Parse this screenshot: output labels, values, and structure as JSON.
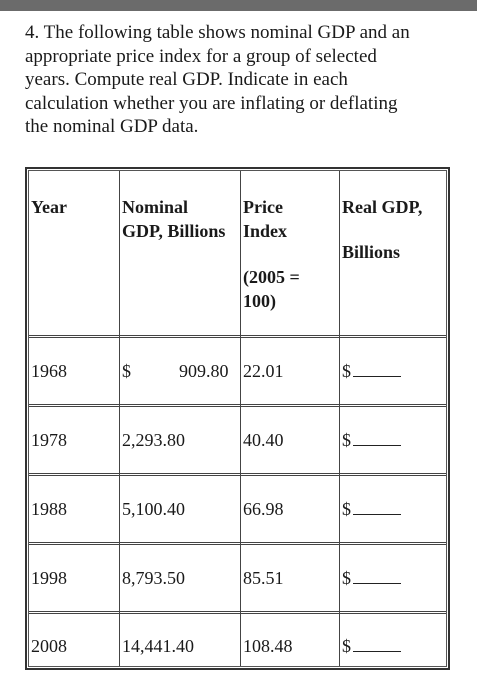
{
  "question": {
    "lines": [
      "4. The following table shows nominal GDP and an",
      "appropriate price index for a group of selected",
      "years. Compute real GDP. Indicate in each",
      "calculation whether you are inflating or deflating",
      "the nominal GDP data."
    ]
  },
  "table": {
    "headers": {
      "year": "Year",
      "nominal_line1": "Nominal",
      "nominal_line2": "GDP, Billions",
      "price_line1": "Price",
      "price_line2": "Index",
      "price_base_line1": "(2005 =",
      "price_base_line2": "100)",
      "real_line1": "Real GDP,",
      "real_line2": "Billions"
    },
    "rows": [
      {
        "year": "1968",
        "currency": "$",
        "nominal": "909.80",
        "price_index": "22.01",
        "real_currency": "$"
      },
      {
        "year": "1978",
        "currency": "",
        "nominal": "2,293.80",
        "price_index": "40.40",
        "real_currency": "$"
      },
      {
        "year": "1988",
        "currency": "",
        "nominal": "5,100.40",
        "price_index": "66.98",
        "real_currency": "$"
      },
      {
        "year": "1998",
        "currency": "",
        "nominal": "8,793.50",
        "price_index": "85.51",
        "real_currency": "$"
      },
      {
        "year": "2008",
        "currency": "",
        "nominal": "14,441.40",
        "price_index": "108.48",
        "real_currency": "$"
      }
    ]
  }
}
